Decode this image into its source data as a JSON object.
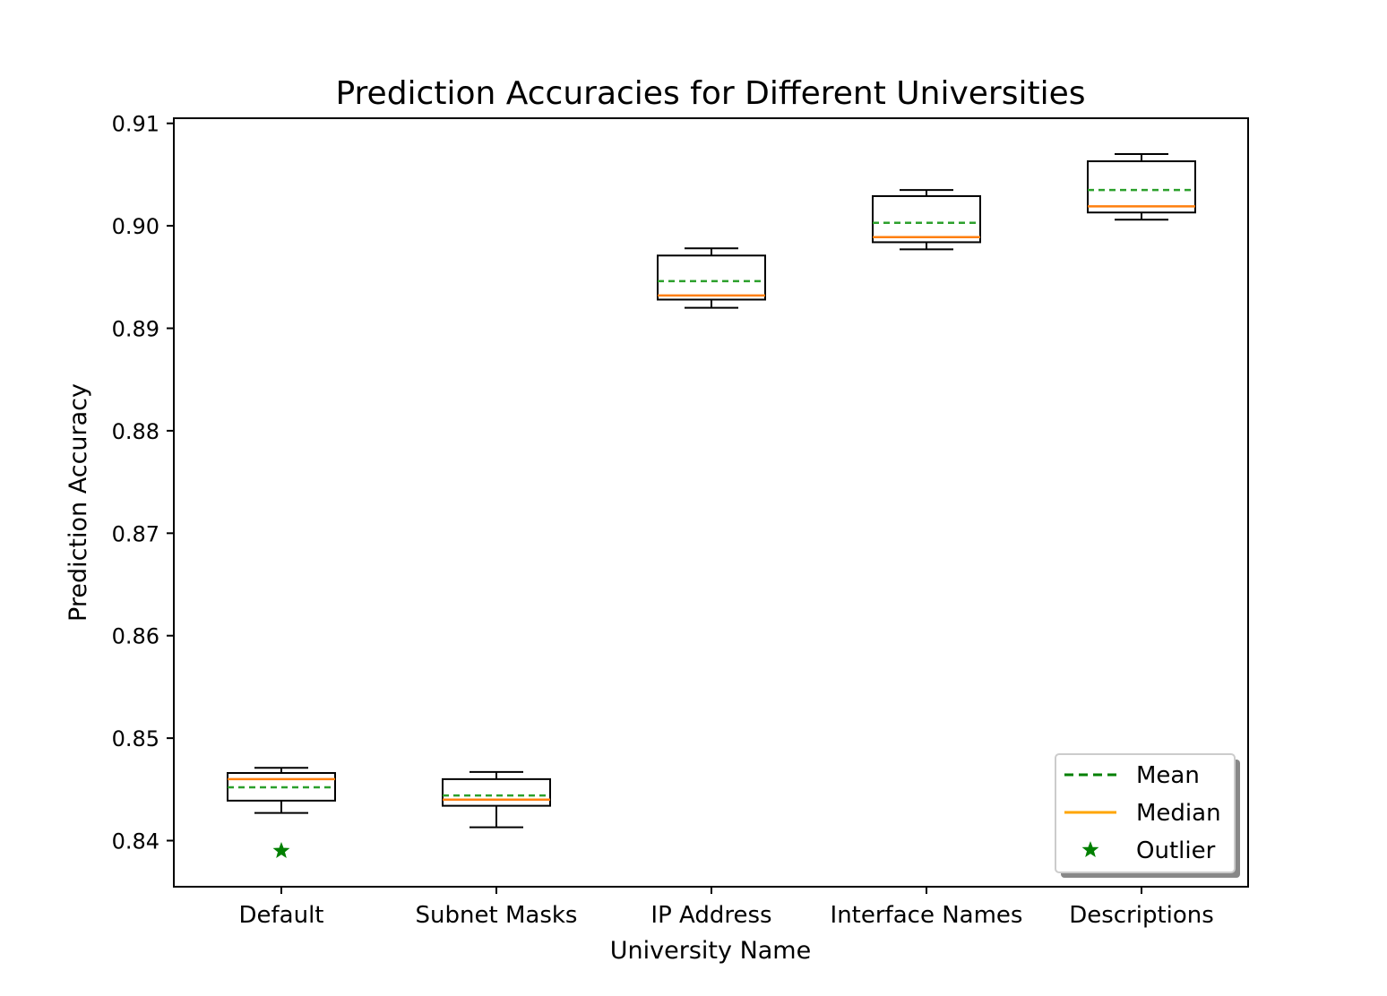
{
  "chart_data": {
    "type": "box",
    "title": "Prediction Accuracies for Different Universities",
    "xlabel": "University Name",
    "ylabel": "Prediction Accuracy",
    "categories": [
      "Default",
      "Subnet Masks",
      "IP Address",
      "Interface Names",
      "Descriptions"
    ],
    "ylim": [
      0.8355,
      0.9105
    ],
    "yticks": [
      0.84,
      0.85,
      0.86,
      0.87,
      0.88,
      0.89,
      0.9,
      0.91
    ],
    "ytick_labels": [
      "0.84",
      "0.85",
      "0.86",
      "0.87",
      "0.88",
      "0.89",
      "0.90",
      "0.91"
    ],
    "grid": false,
    "boxes": [
      {
        "name": "Default",
        "whisker_low": 0.8427,
        "q1": 0.8439,
        "median": 0.846,
        "mean": 0.8452,
        "q3": 0.8466,
        "whisker_high": 0.8471,
        "outliers": [
          0.839
        ]
      },
      {
        "name": "Subnet Masks",
        "whisker_low": 0.8413,
        "q1": 0.8434,
        "median": 0.844,
        "mean": 0.8444,
        "q3": 0.846,
        "whisker_high": 0.8467,
        "outliers": []
      },
      {
        "name": "IP Address",
        "whisker_low": 0.892,
        "q1": 0.8928,
        "median": 0.8932,
        "mean": 0.8946,
        "q3": 0.8971,
        "whisker_high": 0.8978,
        "outliers": []
      },
      {
        "name": "Interface Names",
        "whisker_low": 0.8977,
        "q1": 0.8984,
        "median": 0.8989,
        "mean": 0.9003,
        "q3": 0.9029,
        "whisker_high": 0.9035,
        "outliers": []
      },
      {
        "name": "Descriptions",
        "whisker_low": 0.9006,
        "q1": 0.9013,
        "median": 0.9019,
        "mean": 0.9035,
        "q3": 0.9063,
        "whisker_high": 0.907,
        "outliers": []
      }
    ],
    "legend": {
      "position": "lower-right",
      "entries": [
        {
          "label": "Mean",
          "style": "dashed-line",
          "color": "#008000"
        },
        {
          "label": "Median",
          "style": "solid-line",
          "color": "#ffa500"
        },
        {
          "label": "Outlier",
          "style": "star-marker",
          "color": "#008000"
        }
      ]
    },
    "colors": {
      "box": "#000000",
      "median_line": "#ff7f0e",
      "mean_line": "#2ca02c",
      "outlier": "#008000"
    }
  }
}
